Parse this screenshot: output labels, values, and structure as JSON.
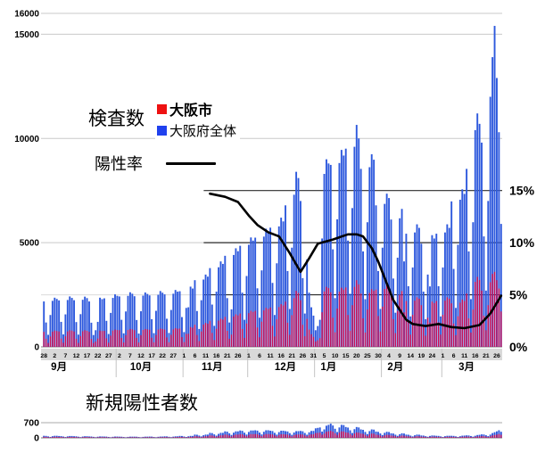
{
  "labels": {
    "tests_title": "検査数",
    "rate_label": "陽性率",
    "legend_city": "大阪市",
    "legend_prefecture": "大阪府全体",
    "cases_title": "新規陽性者数"
  },
  "colors": {
    "bar_prefecture": "#2e59dd",
    "bar_city": "#cc0e52",
    "legend_city_swatch": "#ee1111",
    "legend_prefecture_swatch": "#2041ee",
    "rate_line": "#000000",
    "grid_light": "#c9c9c9",
    "grid_dark": "#2b2b2b",
    "axis_band": "#d9d9d9",
    "baseline": "#9a9a9a"
  },
  "chart_data": [
    {
      "id": "tests",
      "type": "bar+line",
      "title": "検査数",
      "ylim": [
        0,
        16000
      ],
      "y_tick_labels": [
        "0",
        "5000",
        "10000",
        "15000",
        "16000"
      ],
      "y_tick_values": [
        0,
        5000,
        10000,
        15000,
        16000
      ],
      "percent_axis": {
        "tick_labels": [
          "0%",
          "5%",
          "10%",
          "15%"
        ],
        "tick_values": [
          0,
          5,
          10,
          15
        ],
        "ref_lines": [
          5,
          10,
          15
        ]
      },
      "x_tick_step": 5,
      "x_tick_labels": [
        "28",
        "2",
        "7",
        "12",
        "17",
        "22",
        "27",
        "2",
        "7",
        "12",
        "17",
        "22",
        "27",
        "1",
        "6",
        "11",
        "16",
        "21",
        "26",
        "1",
        "6",
        "11",
        "16",
        "21",
        "26",
        "31",
        "5",
        "10",
        "15",
        "20",
        "25",
        "30",
        "4",
        "9",
        "14",
        "19",
        "24",
        "1",
        "6",
        "11",
        "16",
        "21",
        "26"
      ],
      "months": [
        {
          "label": "9月",
          "day": 7
        },
        {
          "label": "10月",
          "day": 45
        },
        {
          "label": "11月",
          "day": 78
        },
        {
          "label": "12月",
          "day": 112
        },
        {
          "label": "1月",
          "day": 132
        },
        {
          "label": "2月",
          "day": 163
        },
        {
          "label": "3月",
          "day": 196
        }
      ],
      "month_boundaries": [
        34,
        65,
        95,
        126,
        157,
        185
      ],
      "series": [
        {
          "name": "大阪府全体",
          "role": "prefecture_tests",
          "color": "#2e59dd",
          "values": [
            2180,
            1170,
            580,
            1530,
            2210,
            2360,
            2300,
            2230,
            1200,
            600,
            1560,
            2250,
            2420,
            2350,
            2240,
            1190,
            590,
            1570,
            2260,
            2410,
            2340,
            2180,
            1160,
            570,
            800,
            1200,
            2360,
            2290,
            2330,
            1250,
            620,
            1630,
            2350,
            2520,
            2450,
            2420,
            1300,
            650,
            1700,
            2450,
            2620,
            2550,
            2430,
            1290,
            640,
            1710,
            2460,
            2610,
            2540,
            2470,
            1330,
            660,
            1730,
            2500,
            2680,
            2600,
            2520,
            1350,
            670,
            1770,
            2550,
            2730,
            2650,
            2670,
            1430,
            710,
            1870,
            1900,
            2890,
            2800,
            3200,
            1720,
            860,
            2240,
            3230,
            3470,
            3370,
            3780,
            2030,
            1010,
            2650,
            3820,
            4100,
            3980,
            4370,
            2340,
            1170,
            1800,
            4410,
            4730,
            4590,
            4850,
            2600,
            1300,
            3400,
            4900,
            5250,
            5100,
            5240,
            2810,
            1400,
            3670,
            5290,
            5670,
            5510,
            5720,
            3070,
            1530,
            4010,
            5780,
            6200,
            6020,
            6790,
            3640,
            1820,
            4760,
            7300,
            8400,
            8100,
            7000,
            3300,
            1600,
            4200,
            2600,
            1900,
            1500,
            800,
            1000,
            1300,
            5200,
            8300,
            9000,
            8800,
            8730,
            4680,
            2340,
            6120,
            8820,
            9450,
            9180,
            9510,
            5100,
            2550,
            6660,
            9600,
            10650,
            10000,
            8540,
            4580,
            2290,
            5980,
            8620,
            9240,
            8980,
            6790,
            3640,
            1820,
            4760,
            6860,
            7350,
            7140,
            6110,
            3280,
            1640,
            4280,
            6170,
            6620,
            4100,
            5430,
            2910,
            1460,
            3810,
            5490,
            5880,
            5710,
            4950,
            2650,
            1330,
            3470,
            2900,
            5360,
            5200,
            5430,
            2910,
            1460,
            3810,
            5490,
            5880,
            5710,
            6980,
            3740,
            1870,
            4900,
            7060,
            7560,
            7340,
            8540,
            4580,
            2290,
            5980,
            10400,
            11200,
            10700,
            9800,
            5300,
            2700,
            7000,
            12000,
            13900,
            15400,
            12900,
            10300,
            5900
          ]
        },
        {
          "name": "大阪市",
          "role": "city_tests",
          "color": "#cc0e52",
          "values": [
            720,
            390,
            190,
            500,
            730,
            780,
            760,
            740,
            400,
            200,
            510,
            740,
            800,
            780,
            740,
            390,
            190,
            520,
            750,
            800,
            770,
            720,
            380,
            190,
            260,
            400,
            780,
            760,
            770,
            410,
            200,
            540,
            780,
            830,
            810,
            800,
            430,
            210,
            560,
            810,
            860,
            840,
            800,
            430,
            210,
            560,
            810,
            860,
            840,
            820,
            440,
            220,
            570,
            830,
            880,
            860,
            830,
            450,
            220,
            580,
            840,
            900,
            870,
            880,
            470,
            230,
            620,
            630,
            950,
            920,
            1060,
            570,
            280,
            740,
            1070,
            1150,
            1110,
            1250,
            670,
            330,
            870,
            1260,
            1350,
            1310,
            1440,
            770,
            390,
            590,
            1460,
            1560,
            1510,
            1600,
            860,
            430,
            1120,
            1620,
            1730,
            1680,
            1730,
            930,
            460,
            1210,
            1750,
            1870,
            1820,
            1890,
            1010,
            500,
            1320,
            1910,
            2050,
            1990,
            2170,
            1160,
            580,
            1520,
            2340,
            2690,
            2590,
            2240,
            1060,
            510,
            1340,
            830,
            610,
            480,
            260,
            320,
            420,
            1660,
            2660,
            2880,
            2820,
            2620,
            1400,
            700,
            1840,
            2650,
            2840,
            2750,
            2850,
            1530,
            770,
            2000,
            2880,
            3200,
            3000,
            2560,
            1370,
            690,
            1790,
            2590,
            2770,
            2690,
            2750,
            1480,
            740,
            1930,
            2780,
            2980,
            2890,
            2470,
            1330,
            660,
            1730,
            2500,
            2680,
            1660,
            2200,
            1180,
            590,
            1540,
            2220,
            2380,
            2310,
            2000,
            1070,
            540,
            1400,
            1170,
            2170,
            2100,
            2200,
            1180,
            590,
            1540,
            2220,
            2380,
            2310,
            2090,
            1120,
            560,
            1470,
            2120,
            2270,
            2200,
            2560,
            1370,
            690,
            1790,
            3120,
            3360,
            3210,
            2700,
            1500,
            800,
            2000,
            3100,
            3500,
            3600,
            3200,
            2800,
            1700
          ]
        },
        {
          "name": "陽性率",
          "role": "positivity_rate",
          "type": "line",
          "color": "#000000",
          "points_day_pct": [
            [
              77,
              14.7
            ],
            [
              84,
              14.4
            ],
            [
              90,
              13.9
            ],
            [
              95,
              12.6
            ],
            [
              99,
              11.7
            ],
            [
              104,
              11.0
            ],
            [
              109,
              10.6
            ],
            [
              114,
              9.0
            ],
            [
              119,
              7.2
            ],
            [
              123,
              8.5
            ],
            [
              127,
              9.9
            ],
            [
              134,
              10.3
            ],
            [
              141,
              10.8
            ],
            [
              145,
              10.8
            ],
            [
              148,
              10.6
            ],
            [
              152,
              9.5
            ],
            [
              155,
              8.2
            ],
            [
              162,
              4.5
            ],
            [
              168,
              2.6
            ],
            [
              171,
              2.2
            ],
            [
              177,
              2.0
            ],
            [
              183,
              2.2
            ],
            [
              189,
              1.9
            ],
            [
              195,
              1.8
            ],
            [
              202,
              2.1
            ],
            [
              207,
              3.2
            ],
            [
              212,
              4.9
            ]
          ]
        }
      ]
    },
    {
      "id": "new_cases",
      "type": "bar",
      "title": "新規陽性者数",
      "ylim": [
        0,
        700
      ],
      "y_tick_labels": [
        "0",
        "700"
      ],
      "y_tick_values": [
        0,
        700
      ],
      "series": [
        {
          "name": "大阪府全体",
          "role": "prefecture_cases",
          "color": "#2e59dd",
          "values": [
            95,
            90,
            67,
            43,
            76,
            95,
            95,
            85,
            81,
            60,
            38,
            68,
            85,
            85,
            75,
            71,
            53,
            34,
            60,
            75,
            75,
            65,
            62,
            46,
            29,
            52,
            65,
            65,
            60,
            57,
            42,
            27,
            48,
            60,
            60,
            55,
            52,
            39,
            25,
            44,
            55,
            55,
            55,
            52,
            39,
            25,
            44,
            55,
            55,
            60,
            57,
            42,
            27,
            48,
            60,
            60,
            70,
            67,
            49,
            32,
            56,
            70,
            70,
            90,
            86,
            63,
            41,
            72,
            90,
            90,
            150,
            143,
            105,
            68,
            120,
            150,
            150,
            230,
            219,
            161,
            104,
            184,
            230,
            230,
            300,
            285,
            210,
            135,
            240,
            300,
            300,
            340,
            323,
            238,
            153,
            272,
            340,
            340,
            350,
            333,
            245,
            158,
            280,
            350,
            350,
            330,
            314,
            231,
            149,
            264,
            330,
            330,
            310,
            295,
            217,
            140,
            248,
            310,
            310,
            320,
            304,
            224,
            144,
            256,
            320,
            320,
            440,
            460,
            480,
            290,
            390,
            560,
            600,
            654,
            570,
            420,
            270,
            480,
            600,
            590,
            500,
            475,
            350,
            225,
            400,
            500,
            480,
            390,
            371,
            273,
            176,
            312,
            390,
            380,
            290,
            276,
            203,
            131,
            232,
            280,
            270,
            210,
            200,
            147,
            95,
            168,
            210,
            200,
            150,
            143,
            105,
            68,
            120,
            150,
            145,
            110,
            105,
            77,
            50,
            88,
            110,
            105,
            95,
            90,
            67,
            43,
            76,
            95,
            95,
            95,
            90,
            67,
            43,
            76,
            100,
            105,
            115,
            110,
            84,
            54,
            96,
            130,
            140,
            160,
            155,
            120,
            80,
            150,
            220,
            260,
            300,
            350,
            280
          ]
        },
        {
          "name": "大阪市",
          "role": "city_cases",
          "color": "#cc0e52",
          "values": [
            48,
            45,
            34,
            22,
            38,
            48,
            48,
            43,
            41,
            30,
            19,
            34,
            43,
            43,
            38,
            36,
            27,
            17,
            30,
            38,
            38,
            33,
            31,
            23,
            15,
            26,
            33,
            33,
            30,
            29,
            21,
            14,
            24,
            30,
            30,
            28,
            26,
            20,
            13,
            22,
            28,
            28,
            28,
            26,
            20,
            13,
            22,
            28,
            28,
            30,
            29,
            21,
            14,
            24,
            30,
            30,
            35,
            34,
            25,
            16,
            28,
            35,
            35,
            45,
            43,
            32,
            21,
            36,
            45,
            45,
            75,
            72,
            53,
            34,
            60,
            75,
            75,
            115,
            110,
            81,
            52,
            92,
            115,
            115,
            150,
            143,
            105,
            68,
            120,
            150,
            150,
            170,
            162,
            119,
            77,
            136,
            170,
            170,
            175,
            167,
            123,
            79,
            140,
            175,
            175,
            165,
            157,
            116,
            75,
            132,
            165,
            165,
            155,
            148,
            109,
            70,
            124,
            155,
            155,
            160,
            152,
            112,
            72,
            128,
            160,
            160,
            220,
            230,
            240,
            145,
            195,
            280,
            300,
            327,
            285,
            210,
            135,
            240,
            300,
            295,
            250,
            238,
            175,
            113,
            200,
            250,
            240,
            195,
            186,
            137,
            88,
            156,
            195,
            190,
            145,
            138,
            102,
            66,
            116,
            140,
            135,
            105,
            100,
            74,
            48,
            84,
            105,
            100,
            75,
            72,
            53,
            34,
            60,
            75,
            73,
            55,
            53,
            39,
            25,
            44,
            55,
            53,
            48,
            45,
            34,
            22,
            38,
            48,
            48,
            48,
            45,
            34,
            22,
            38,
            50,
            53,
            58,
            55,
            42,
            27,
            48,
            65,
            70,
            80,
            78,
            60,
            40,
            75,
            110,
            130,
            150,
            175,
            140
          ]
        }
      ]
    }
  ]
}
